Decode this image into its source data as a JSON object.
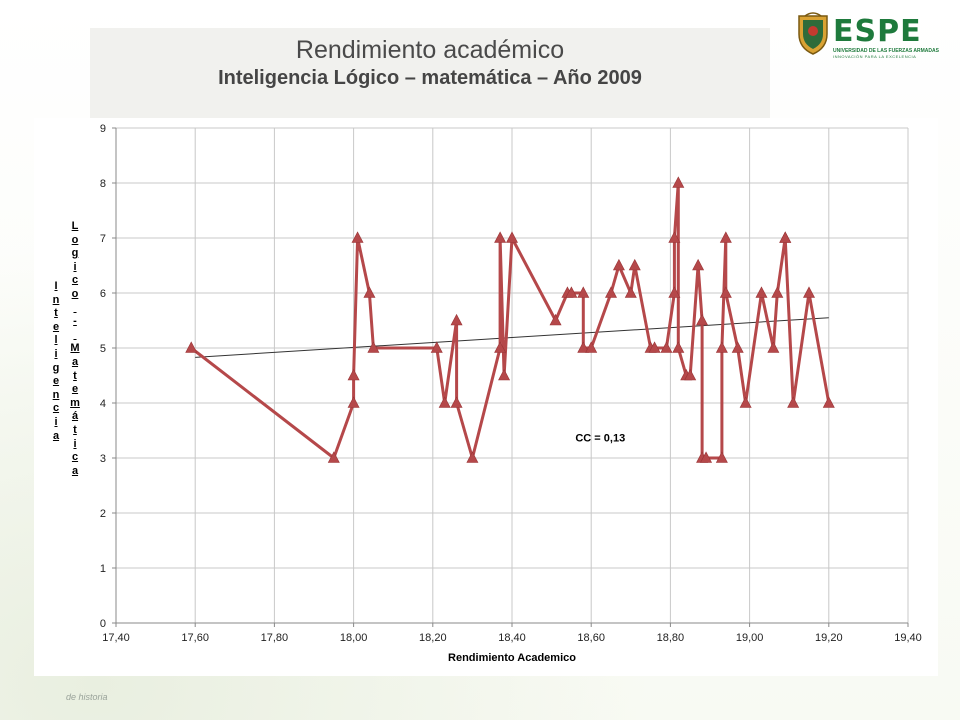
{
  "slide": {
    "title": "Rendimiento académico",
    "subtitle": "Inteligencia  Lógico – matemática – Año 2009",
    "footer_note": "de historia"
  },
  "logo": {
    "name": "ESPE",
    "line1": "UNIVERSIDAD DE LAS FUERZAS ARMADAS",
    "line2": "INNOVACIÓN PARA LA EXCELENCIA",
    "color": "#1e7a3c"
  },
  "chart_data": {
    "type": "line",
    "title": "",
    "xlabel": "Rendimiento Academico",
    "ylabel_col1": [
      "I",
      "n",
      "t",
      "e",
      "l",
      "i",
      "g",
      "e",
      "n",
      "c",
      "i",
      "a"
    ],
    "ylabel_col2": [
      "L",
      "o",
      "g",
      "i",
      "c",
      "o",
      "",
      "-",
      "",
      "M",
      "a",
      "t",
      "e",
      "m",
      "á",
      "t",
      "i",
      "c",
      "a"
    ],
    "xlim": [
      17.4,
      19.4
    ],
    "ylim": [
      0,
      9
    ],
    "x_ticks": [
      17.4,
      17.6,
      17.8,
      18.0,
      18.2,
      18.4,
      18.6,
      18.8,
      19.0,
      19.2,
      19.4
    ],
    "x_tick_labels": [
      "17,40",
      "17,60",
      "17,80",
      "18,00",
      "18,20",
      "18,40",
      "18,60",
      "18,80",
      "19,00",
      "19,20",
      "19,40"
    ],
    "y_ticks": [
      0,
      1,
      2,
      3,
      4,
      5,
      6,
      7,
      8,
      9
    ],
    "y_tick_labels": [
      "0",
      "1",
      "2",
      "3",
      "4",
      "5",
      "6",
      "7",
      "8",
      "9"
    ],
    "grid": true,
    "series_color": "#b5484a",
    "series": [
      {
        "x": [
          17.59,
          17.95,
          18.0,
          18.0,
          18.01,
          18.04,
          18.05,
          18.21,
          18.23,
          18.26,
          18.26,
          18.3,
          18.37,
          18.37,
          18.38,
          18.4,
          18.51,
          18.54,
          18.55,
          18.58,
          18.58,
          18.6,
          18.65,
          18.67,
          18.7,
          18.71,
          18.75,
          18.76,
          18.79,
          18.81,
          18.81,
          18.82,
          18.82,
          18.84,
          18.85,
          18.87,
          18.88,
          18.88,
          18.89,
          18.93,
          18.93,
          18.94,
          18.94,
          18.97,
          18.99,
          19.03,
          19.06,
          19.07,
          19.09,
          19.09,
          19.11,
          19.15,
          19.2
        ],
        "values": [
          5,
          3,
          4,
          4.5,
          7,
          6,
          5,
          5,
          4,
          5.5,
          4,
          3,
          5,
          7,
          4.5,
          7,
          5.5,
          6,
          6,
          6,
          5,
          5,
          6,
          6.5,
          6,
          6.5,
          5,
          5,
          5,
          6,
          7,
          8,
          5,
          4.5,
          4.5,
          6.5,
          5.5,
          3,
          3,
          3,
          5,
          7,
          6,
          5,
          4,
          6,
          5,
          6,
          7,
          7,
          4,
          6,
          4
        ]
      }
    ],
    "trendline": {
      "x": [
        17.6,
        19.2
      ],
      "values": [
        4.83,
        5.55
      ],
      "color": "#333333"
    },
    "annotation": "CC = 0,13",
    "annotation_at": {
      "x": 18.56,
      "y": 3.3
    }
  }
}
